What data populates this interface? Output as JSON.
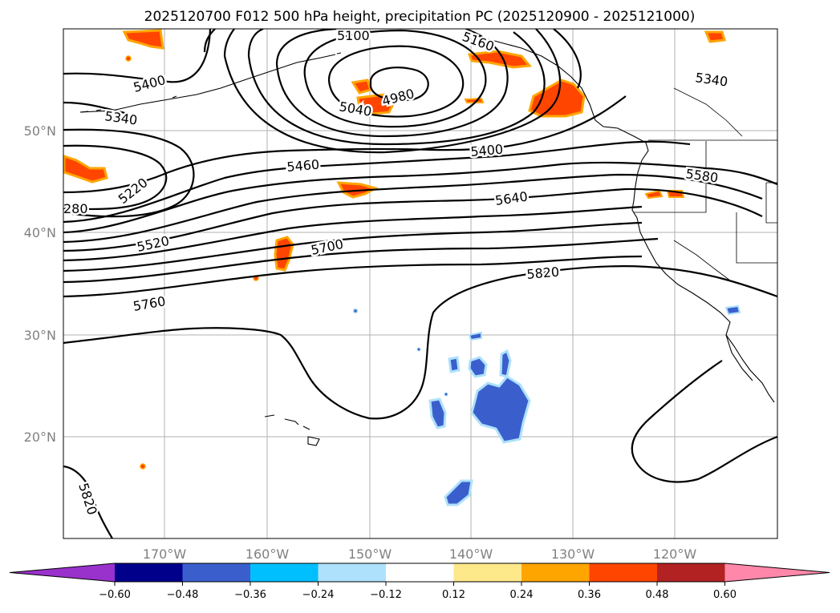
{
  "title": "2025120700 F012 500 hPa height, precipitation PC (2025120900 - 2025121000)",
  "lat_labels": [
    "50°N",
    "40°N",
    "30°N",
    "20°N"
  ],
  "lon_labels": [
    "170°W",
    "160°W",
    "150°W",
    "140°W",
    "130°W",
    "120°W"
  ],
  "contour_labels": [
    "5100",
    "5160",
    "5400",
    "5340",
    "5040",
    "4980",
    "5340",
    "5400",
    "5460",
    "5580",
    "5220",
    "280",
    "5640",
    "5520",
    "5700",
    "5820",
    "5760",
    "5820"
  ],
  "colorbar": {
    "ticks": [
      "−0.60",
      "−0.48",
      "−0.36",
      "−0.24",
      "−0.12",
      "0.12",
      "0.24",
      "0.36",
      "0.48",
      "0.60"
    ],
    "colors": [
      "#9932cc",
      "#00008b",
      "#3a5fcd",
      "#00bfff",
      "#aee1fb",
      "#ffffff",
      "#fde88a",
      "#ffa500",
      "#ff4500",
      "#b22222",
      "#ff88aa"
    ]
  },
  "colors": {
    "pos_low": "#fde88a",
    "pos_mid": "#ffa500",
    "pos_high": "#ff4500",
    "neg_low": "#aee1fb",
    "neg_mid": "#00bfff",
    "neg_high": "#3a5fcd"
  }
}
